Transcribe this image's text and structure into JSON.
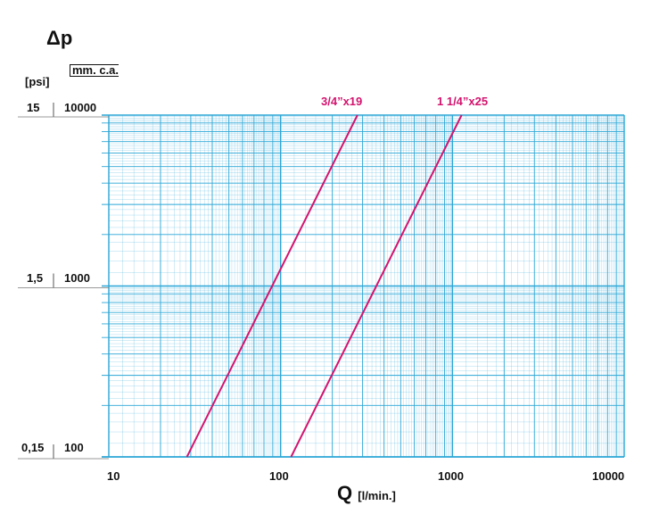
{
  "chart_data": {
    "type": "line",
    "x_scale": "log",
    "y_scale": "log",
    "xlim": [
      10,
      10000
    ],
    "ylim": [
      100,
      10000
    ],
    "x_ticks": [
      "10",
      "100",
      "1000",
      "10000"
    ],
    "y_ticks_mm": [
      "100",
      "1000",
      "10000"
    ],
    "y_ticks_psi": [
      "0,15",
      "1,5",
      "15"
    ],
    "xlabel": "Q",
    "xlabel_unit": "[l/min.]",
    "ylabel": "Δp",
    "ylabel_unit_psi": "[psi]",
    "ylabel_unit_mm": "mm. c.a.",
    "grid": true,
    "series": [
      {
        "name": "3/4”x19",
        "x": [
          28.5,
          280
        ],
        "y": [
          100,
          10000
        ],
        "color": "#d4136e"
      },
      {
        "name": "1 1/4”x25",
        "x": [
          115,
          1130
        ],
        "y": [
          100,
          10000
        ],
        "color": "#d4136e"
      }
    ],
    "colors": {
      "grid": "#2aa6d6",
      "curve": "#d4136e"
    }
  }
}
